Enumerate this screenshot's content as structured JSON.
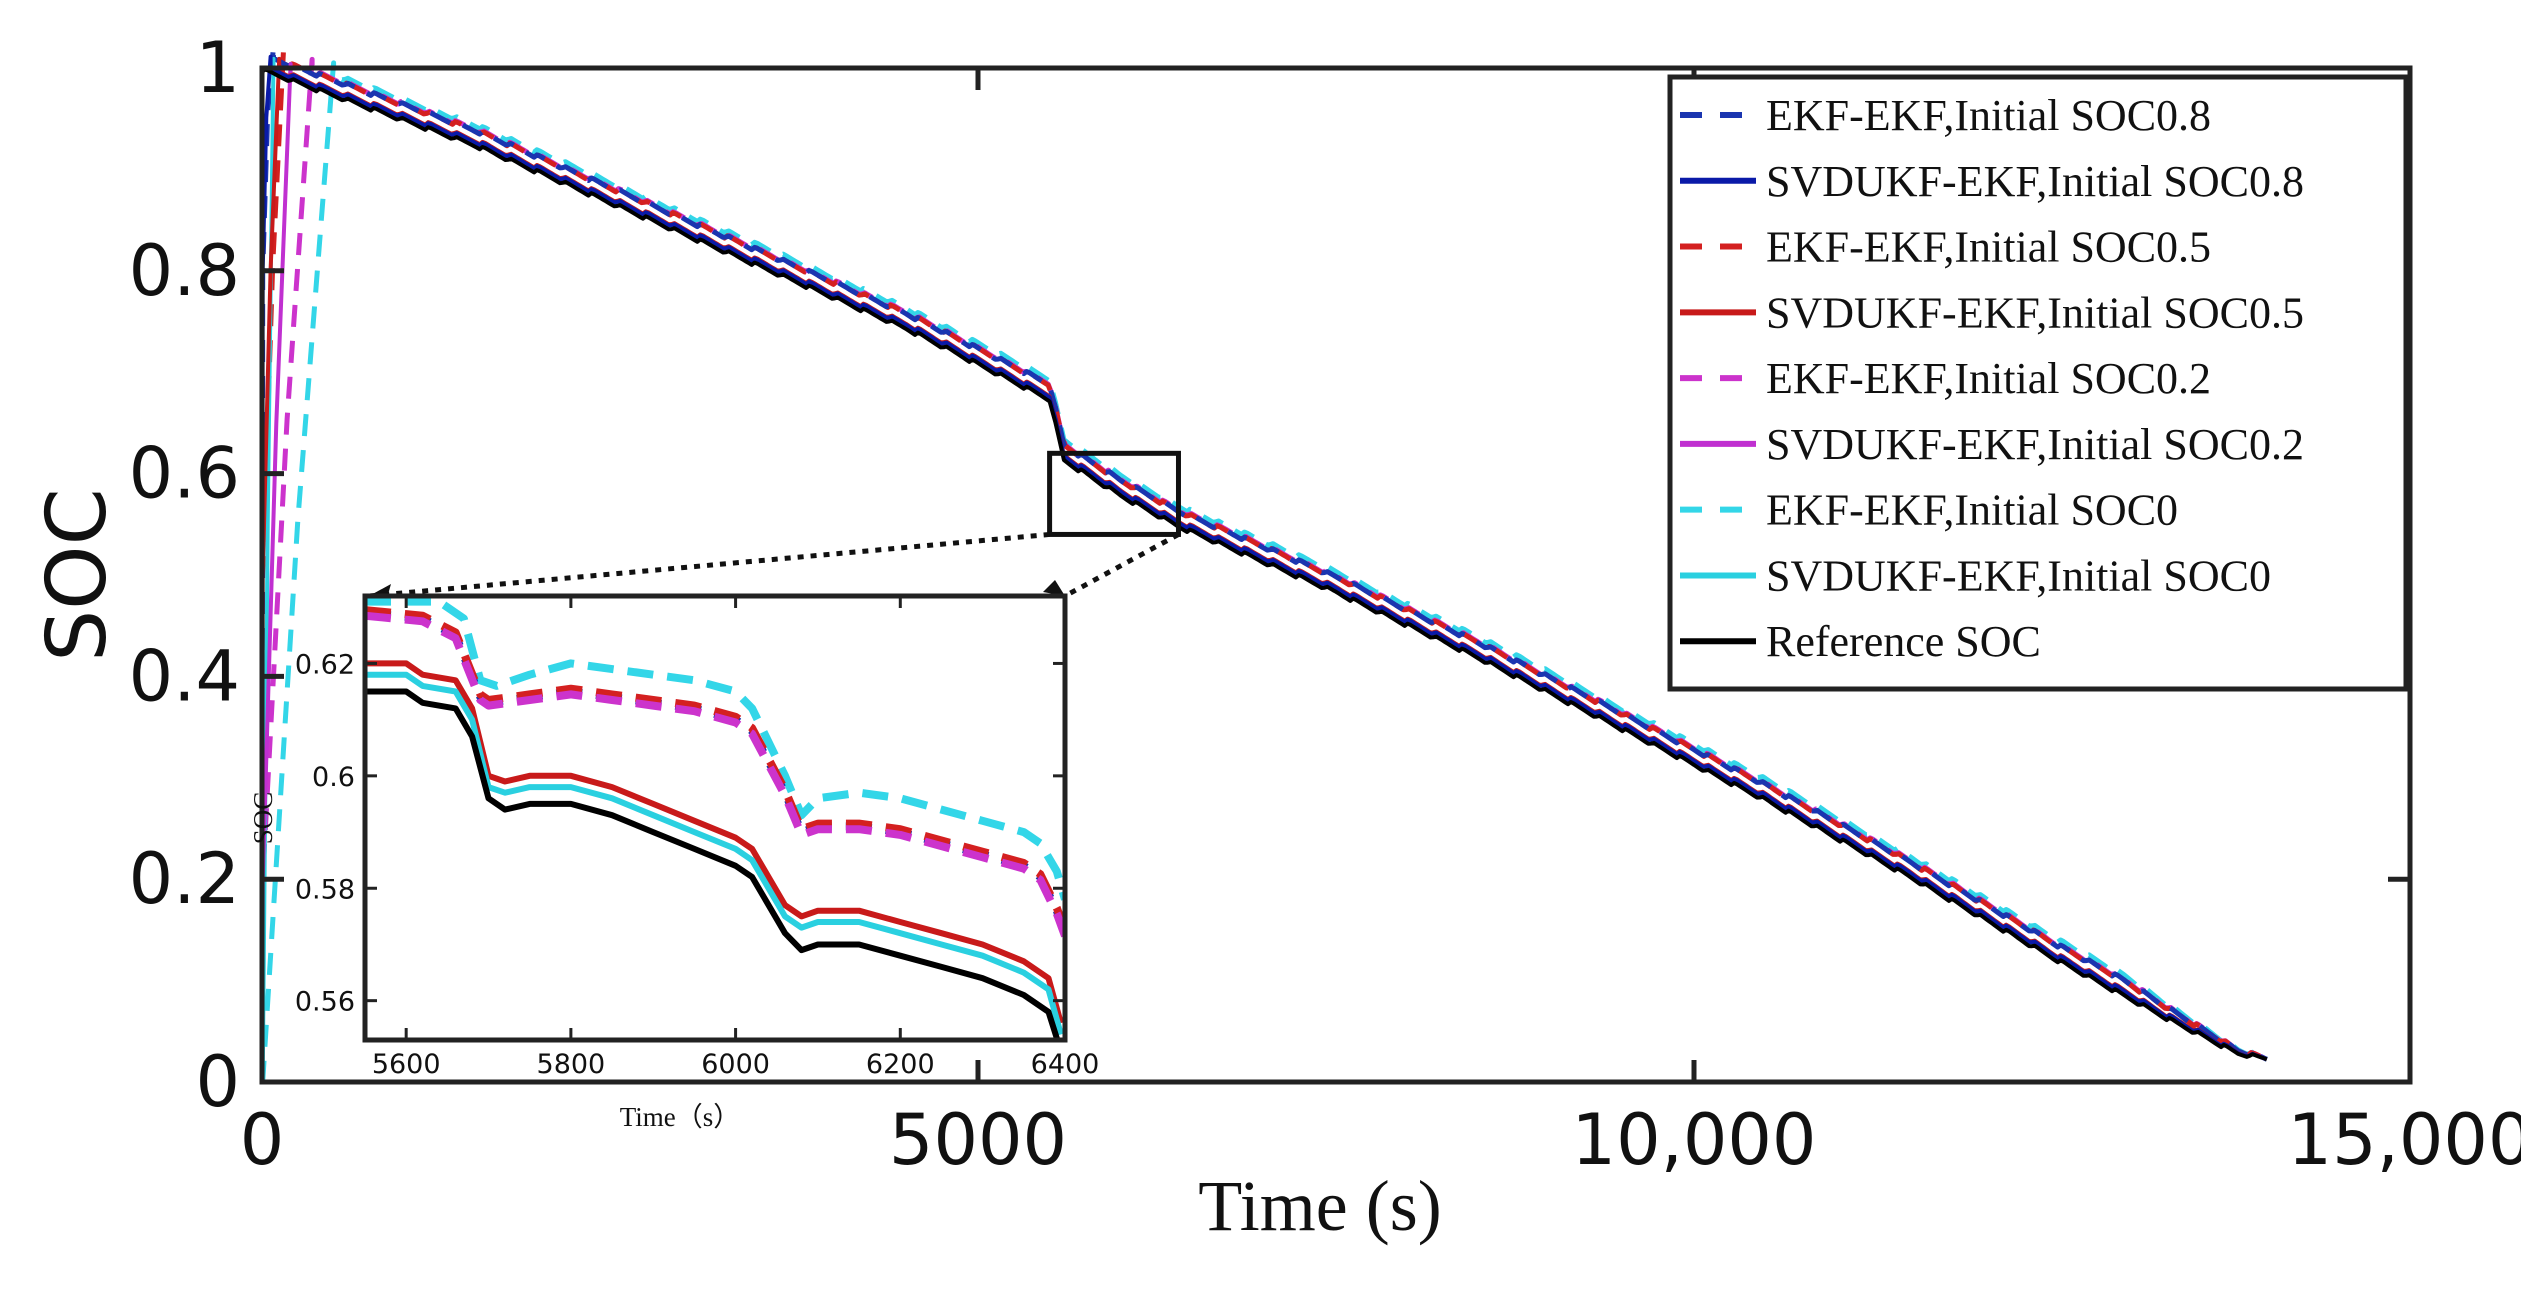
{
  "chart_data": {
    "type": "line",
    "title": "",
    "xlabel": "Time  (s)",
    "ylabel": "SOC",
    "xlim": [
      0,
      15000
    ],
    "ylim": [
      0,
      1
    ],
    "x_ticks": [
      0,
      5000,
      10000,
      15000
    ],
    "x_tick_labels": [
      "0",
      "5000",
      "10,000",
      "15,000"
    ],
    "y_ticks": [
      0,
      0.2,
      0.4,
      0.6,
      0.8,
      1
    ],
    "y_tick_labels": [
      "0",
      "0.2",
      "0.4",
      "0.6",
      "0.8",
      "1"
    ],
    "grid": false,
    "legend_position": "top-right",
    "reference": {
      "x": [
        0,
        200,
        700,
        1500,
        2500,
        3500,
        4500,
        5500,
        5600,
        6000,
        6400,
        7500,
        8500,
        9500,
        10500,
        11500,
        12500,
        13300,
        13800,
        14000
      ],
      "y": [
        1,
        0.99,
        0.965,
        0.925,
        0.865,
        0.805,
        0.745,
        0.675,
        0.615,
        0.58,
        0.55,
        0.485,
        0.42,
        0.35,
        0.28,
        0.205,
        0.125,
        0.065,
        0.03,
        0.025
      ]
    },
    "series": [
      {
        "name": "EKF-EKF,Initial SOC0.8",
        "color": "#1a35b0",
        "style": "dashed",
        "offset": 0.015,
        "start": 0.8,
        "converge_time": 80
      },
      {
        "name": "SVDUKF-EKF,Initial SOC0.8",
        "color": "#0a1aa8",
        "style": "solid",
        "offset": 0.004,
        "start": 0.8,
        "converge_time": 60
      },
      {
        "name": "EKF-EKF,Initial SOC0.5",
        "color": "#d42020",
        "style": "dashed",
        "offset": 0.015,
        "start": 0.5,
        "converge_time": 150
      },
      {
        "name": "SVDUKF-EKF,Initial SOC0.5",
        "color": "#c81a1a",
        "style": "solid",
        "offset": 0.005,
        "start": 0.5,
        "converge_time": 120
      },
      {
        "name": "EKF-EKF,Initial SOC0.2",
        "color": "#cc33cc",
        "style": "dashed",
        "offset": 0.016,
        "start": 0.2,
        "converge_time": 350
      },
      {
        "name": "SVDUKF-EKF,Initial SOC0.2",
        "color": "#c030d0",
        "style": "solid",
        "offset": 0.004,
        "start": 0.2,
        "converge_time": 200
      },
      {
        "name": "EKF-EKF,Initial SOC0",
        "color": "#33d6e8",
        "style": "dashed",
        "offset": 0.02,
        "start": 0,
        "converge_time": 500
      },
      {
        "name": "SVDUKF-EKF,Initial SOC0",
        "color": "#2ad0e0",
        "style": "solid",
        "offset": 0.003,
        "start": 0,
        "converge_time": 80
      },
      {
        "name": "Reference SOC",
        "color": "#000000",
        "style": "solid",
        "offset": 0,
        "start": 1,
        "converge_time": 0
      }
    ],
    "inset": {
      "xlabel": "Time（s）",
      "ylabel": "SOC",
      "xlim": [
        5550,
        6400
      ],
      "ylim": [
        0.553,
        0.632
      ],
      "x_ticks": [
        5600,
        5800,
        6000,
        6200,
        6400
      ],
      "x_tick_labels": [
        "5600",
        "5800",
        "6000",
        "6200",
        "6400"
      ],
      "y_ticks": [
        0.56,
        0.58,
        0.6,
        0.62
      ],
      "y_tick_labels": [
        "0.56",
        "0.58",
        "0.6",
        "0.62"
      ],
      "zoom_region": {
        "x": [
          5500,
          6400
        ],
        "y": [
          0.54,
          0.62
        ]
      },
      "curves": [
        {
          "name": "EKF-EKF,Initial SOC0",
          "color": "#33d6e8",
          "style": "dashed",
          "x": [
            5550,
            5640,
            5670,
            5690,
            5710,
            5750,
            5800,
            5850,
            5900,
            5950,
            6000,
            6020,
            6060,
            6080,
            6100,
            6150,
            6200,
            6250,
            6300,
            6350,
            6370,
            6390,
            6400
          ],
          "y": [
            0.631,
            0.631,
            0.628,
            0.617,
            0.616,
            0.618,
            0.62,
            0.619,
            0.618,
            0.617,
            0.615,
            0.612,
            0.6,
            0.593,
            0.596,
            0.597,
            0.596,
            0.594,
            0.592,
            0.59,
            0.588,
            0.583,
            0.578
          ]
        },
        {
          "name": "EKF-EKF,Initial SOC0.8",
          "color": "#1a35b0",
          "style": "dashed",
          "x": [
            5550,
            5620,
            5660,
            5690,
            5700,
            5750,
            5800,
            5850,
            5900,
            5950,
            6000,
            6020,
            6060,
            6080,
            6100,
            6150,
            6200,
            6250,
            6300,
            6350,
            6370,
            6390,
            6400
          ],
          "y": [
            0.629,
            0.628,
            0.625,
            0.614,
            0.613,
            0.614,
            0.615,
            0.614,
            0.613,
            0.612,
            0.61,
            0.608,
            0.597,
            0.59,
            0.591,
            0.591,
            0.59,
            0.588,
            0.586,
            0.584,
            0.582,
            0.576,
            0.572
          ]
        },
        {
          "name": "EKF-EKF,Initial SOC0.5",
          "color": "#d42020",
          "style": "dashed",
          "x": [
            5550,
            5620,
            5660,
            5690,
            5700,
            5750,
            5800,
            5850,
            5900,
            5950,
            6000,
            6020,
            6060,
            6080,
            6100,
            6150,
            6200,
            6250,
            6300,
            6350,
            6370,
            6390,
            6400
          ],
          "y": [
            0.6295,
            0.6285,
            0.6255,
            0.6145,
            0.6135,
            0.6145,
            0.6155,
            0.6145,
            0.6135,
            0.6125,
            0.6105,
            0.6085,
            0.5975,
            0.5905,
            0.5915,
            0.5915,
            0.5905,
            0.5885,
            0.5865,
            0.5845,
            0.5825,
            0.5765,
            0.5725
          ]
        },
        {
          "name": "EKF-EKF,Initial SOC0.2",
          "color": "#cc33cc",
          "style": "dashed",
          "x": [
            5550,
            5620,
            5660,
            5690,
            5700,
            5750,
            5800,
            5850,
            5900,
            5950,
            6000,
            6020,
            6060,
            6080,
            6100,
            6150,
            6200,
            6250,
            6300,
            6350,
            6370,
            6390,
            6400
          ],
          "y": [
            0.6285,
            0.6275,
            0.6245,
            0.6135,
            0.6125,
            0.6135,
            0.6145,
            0.6135,
            0.6125,
            0.6115,
            0.6095,
            0.6075,
            0.5965,
            0.5895,
            0.5905,
            0.5905,
            0.5895,
            0.5875,
            0.5855,
            0.5835,
            0.5815,
            0.5755,
            0.5715
          ]
        },
        {
          "name": "SVDUKF-EKF,Initial SOC0.5",
          "color": "#c81a1a",
          "style": "solid",
          "x": [
            5550,
            5600,
            5620,
            5660,
            5680,
            5700,
            5720,
            5750,
            5800,
            5850,
            5900,
            5950,
            6000,
            6020,
            6060,
            6080,
            6100,
            6150,
            6200,
            6250,
            6300,
            6350,
            6380,
            6395
          ],
          "y": [
            0.62,
            0.62,
            0.618,
            0.617,
            0.612,
            0.6,
            0.599,
            0.6,
            0.6,
            0.598,
            0.595,
            0.592,
            0.589,
            0.587,
            0.577,
            0.575,
            0.576,
            0.576,
            0.574,
            0.572,
            0.57,
            0.567,
            0.564,
            0.556
          ]
        },
        {
          "name": "SVDUKF-EKF,Initial SOC0",
          "color": "#2ad0e0",
          "style": "solid",
          "x": [
            5550,
            5600,
            5620,
            5660,
            5680,
            5700,
            5720,
            5750,
            5800,
            5850,
            5900,
            5950,
            6000,
            6020,
            6060,
            6080,
            6100,
            6150,
            6200,
            6250,
            6300,
            6350,
            6380,
            6395
          ],
          "y": [
            0.618,
            0.618,
            0.616,
            0.615,
            0.61,
            0.598,
            0.597,
            0.598,
            0.598,
            0.596,
            0.593,
            0.59,
            0.587,
            0.585,
            0.575,
            0.573,
            0.574,
            0.574,
            0.572,
            0.57,
            0.568,
            0.565,
            0.562,
            0.554
          ]
        },
        {
          "name": "Reference SOC",
          "color": "#000000",
          "style": "solid",
          "x": [
            5550,
            5600,
            5620,
            5660,
            5680,
            5700,
            5720,
            5750,
            5800,
            5850,
            5900,
            5950,
            6000,
            6020,
            6060,
            6080,
            6100,
            6150,
            6200,
            6250,
            6300,
            6350,
            6380,
            6395
          ],
          "y": [
            0.615,
            0.615,
            0.613,
            0.612,
            0.607,
            0.596,
            0.594,
            0.595,
            0.595,
            0.593,
            0.59,
            0.587,
            0.584,
            0.582,
            0.572,
            0.569,
            0.57,
            0.57,
            0.568,
            0.566,
            0.564,
            0.561,
            0.558,
            0.551
          ]
        }
      ]
    }
  }
}
